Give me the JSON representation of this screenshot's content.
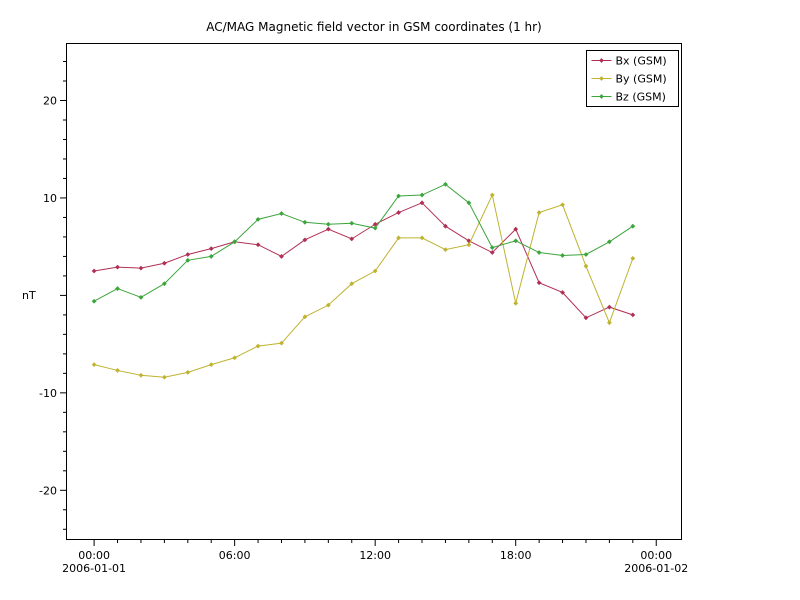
{
  "title": "AC/MAG  Magnetic field vector in GSM coordinates (1 hr)",
  "ylabel": "nT",
  "chart_data": {
    "type": "line",
    "x_units": "hours since 2006-01-01 00:00",
    "x": [
      0,
      1,
      2,
      3,
      4,
      5,
      6,
      7,
      8,
      9,
      10,
      11,
      12,
      13,
      14,
      15,
      16,
      17,
      18,
      19,
      20,
      21,
      22,
      23
    ],
    "series": [
      {
        "name": "Bx (GSM)",
        "color": "#B03055",
        "values": [
          2.5,
          2.9,
          2.8,
          3.3,
          4.2,
          4.8,
          5.5,
          5.2,
          4.0,
          5.7,
          6.8,
          5.8,
          7.3,
          8.5,
          9.5,
          7.1,
          5.6,
          4.4,
          6.8,
          1.3,
          0.3,
          -2.3,
          -1.2,
          -2.0
        ]
      },
      {
        "name": "By (GSM)",
        "color": "#BFB330",
        "values": [
          -7.1,
          -7.7,
          -8.2,
          -8.4,
          -7.9,
          -7.1,
          -6.4,
          -5.2,
          -4.9,
          -2.2,
          -1.0,
          1.2,
          2.5,
          5.9,
          5.9,
          4.7,
          5.2,
          10.3,
          -0.8,
          8.5,
          9.3,
          3.0,
          -2.8,
          3.8
        ]
      },
      {
        "name": "Bz (GSM)",
        "color": "#3CA53C",
        "values": [
          -0.6,
          0.7,
          -0.2,
          1.2,
          3.6,
          4.0,
          5.5,
          7.8,
          8.4,
          7.5,
          7.3,
          7.4,
          6.9,
          10.2,
          10.3,
          11.4,
          9.5,
          4.9,
          5.6,
          4.4,
          4.1,
          4.2,
          5.5,
          7.1
        ]
      }
    ],
    "xtick_hours": [
      0,
      6,
      12,
      18,
      24
    ],
    "xtick_labels": [
      "00:00",
      "06:00",
      "12:00",
      "18:00",
      "00:00"
    ],
    "x_date_labels": [
      {
        "hour": 0,
        "label": "2006-01-01"
      },
      {
        "hour": 24,
        "label": "2006-01-02"
      }
    ],
    "ytick_values": [
      20,
      10,
      0,
      -10,
      -20
    ],
    "ytick_labels": [
      "20",
      "10",
      "",
      "-10",
      "-20"
    ],
    "ylim": [
      -25.1,
      25.9
    ],
    "xlim_hours": [
      -1.2,
      25.1
    ],
    "grid": false,
    "legend_position": "top-right",
    "axis_color": "#000000",
    "background_color": "#ffffff"
  }
}
